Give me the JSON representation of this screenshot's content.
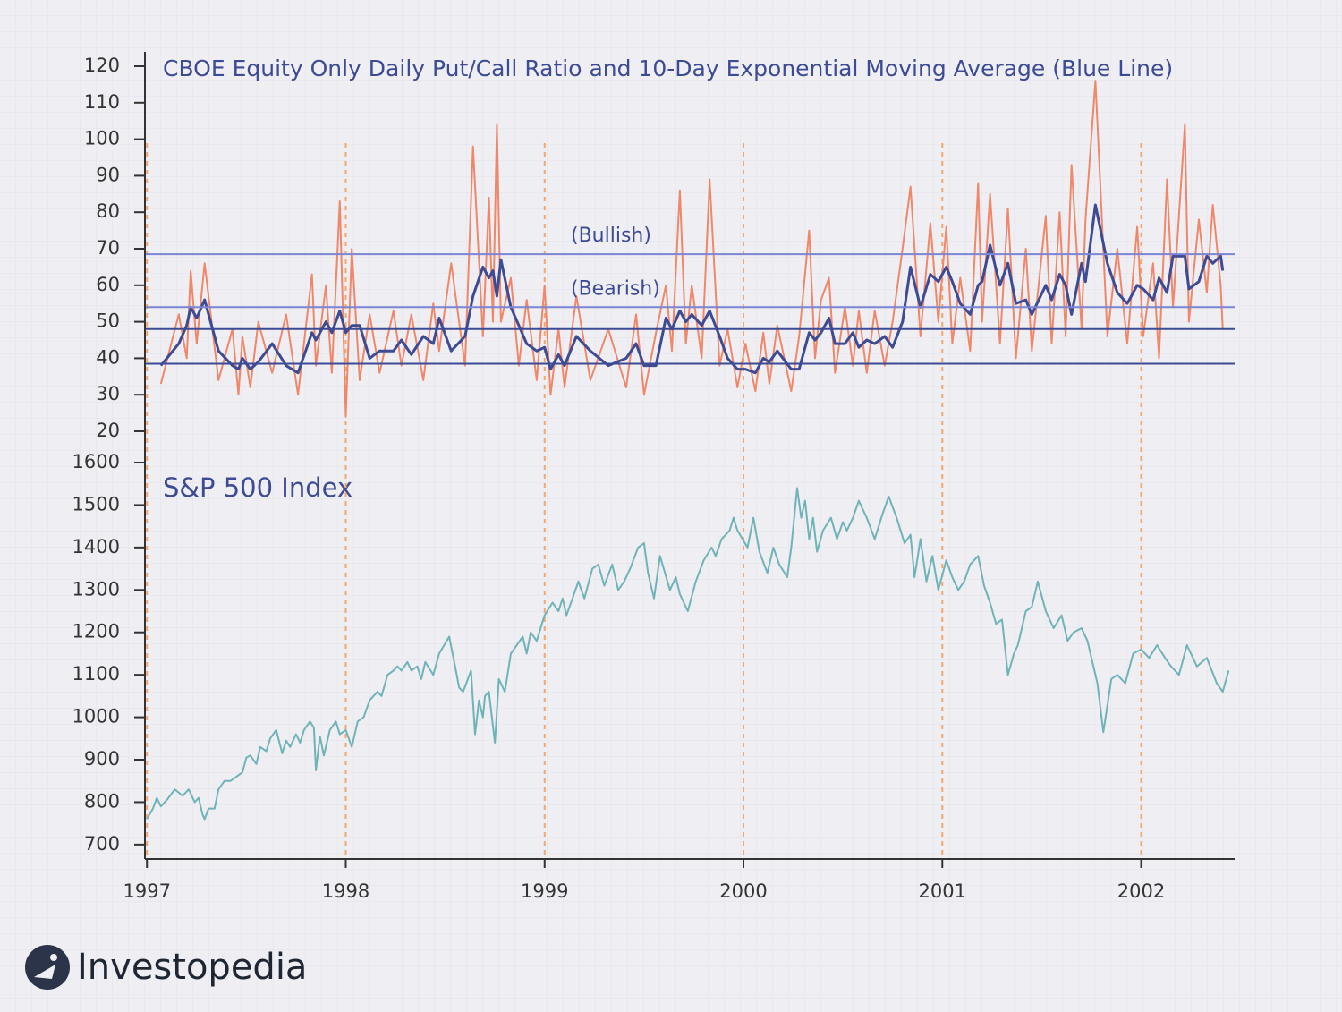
{
  "chart_data": [
    {
      "type": "line",
      "title": "CBOE Equity Only Daily Put/Call Ratio and 10-Day Exponential Moving Average (Blue Line)",
      "xlim": [
        1996.99,
        2002.47
      ],
      "ylim": [
        20,
        120
      ],
      "yticks": [
        20,
        30,
        40,
        50,
        60,
        70,
        80,
        90,
        100,
        110,
        120
      ],
      "x": [
        1997.07,
        1997.16,
        1997.2,
        1997.22,
        1997.25,
        1997.29,
        1997.36,
        1997.43,
        1997.46,
        1997.48,
        1997.52,
        1997.56,
        1997.63,
        1997.7,
        1997.76,
        1997.83,
        1997.85,
        1997.9,
        1997.93,
        1997.97,
        1998.0,
        1998.03,
        1998.07,
        1998.12,
        1998.17,
        1998.24,
        1998.28,
        1998.33,
        1998.39,
        1998.44,
        1998.47,
        1998.53,
        1998.6,
        1998.64,
        1998.69,
        1998.72,
        1998.74,
        1998.76,
        1998.78,
        1998.83,
        1998.87,
        1998.91,
        1998.96,
        1999.0,
        1999.03,
        1999.07,
        1999.1,
        1999.16,
        1999.23,
        1999.32,
        1999.41,
        1999.46,
        1999.5,
        1999.56,
        1999.61,
        1999.64,
        1999.68,
        1999.71,
        1999.74,
        1999.79,
        1999.83,
        1999.88,
        1999.92,
        1999.97,
        2000.01,
        2000.06,
        2000.1,
        2000.13,
        2000.17,
        2000.24,
        2000.28,
        2000.33,
        2000.36,
        2000.39,
        2000.43,
        2000.46,
        2000.51,
        2000.55,
        2000.58,
        2000.62,
        2000.66,
        2000.71,
        2000.75,
        2000.8,
        2000.84,
        2000.89,
        2000.94,
        2000.98,
        2001.02,
        2001.05,
        2001.09,
        2001.14,
        2001.18,
        2001.2,
        2001.24,
        2001.29,
        2001.33,
        2001.37,
        2001.42,
        2001.45,
        2001.52,
        2001.55,
        2001.59,
        2001.62,
        2001.65,
        2001.7,
        2001.72,
        2001.77,
        2001.83,
        2001.88,
        2001.93,
        2001.98,
        2002.01,
        2002.06,
        2002.09,
        2002.13,
        2002.16,
        2002.22,
        2002.24,
        2002.29,
        2002.33,
        2002.36,
        2002.4,
        2002.41
      ],
      "series": [
        {
          "color": "#f0876a",
          "values": [
            33,
            52,
            40,
            64,
            44,
            66,
            34,
            48,
            30,
            46,
            32,
            50,
            36,
            52,
            30,
            63,
            38,
            60,
            36,
            83,
            24,
            70,
            34,
            52,
            36,
            53,
            38,
            52,
            34,
            55,
            42,
            66,
            38,
            98,
            46,
            84,
            50,
            104,
            50,
            62,
            38,
            56,
            34,
            60,
            30,
            48,
            32,
            57,
            34,
            48,
            32,
            52,
            30,
            47,
            60,
            42,
            86,
            44,
            60,
            40,
            89,
            38,
            48,
            32,
            44,
            31,
            47,
            33,
            49,
            31,
            46,
            75,
            40,
            56,
            62,
            36,
            54,
            38,
            53,
            36,
            53,
            38,
            50,
            70,
            87,
            46,
            77,
            50,
            76,
            44,
            62,
            42,
            88,
            50,
            85,
            44,
            81,
            40,
            70,
            42,
            79,
            44,
            80,
            46,
            93,
            48,
            78,
            116,
            46,
            70,
            44,
            76,
            46,
            66,
            40,
            89,
            54,
            104,
            50,
            78,
            58,
            82,
            60,
            48
          ]
        },
        {
          "color": "#3d4a94",
          "values": [
            38,
            44,
            49,
            54,
            51,
            56,
            42,
            38,
            37,
            40,
            37,
            39,
            44,
            38,
            36,
            47,
            45,
            50,
            47,
            53,
            47,
            49,
            49,
            40,
            42,
            42,
            45,
            41,
            46,
            44,
            51,
            42,
            46,
            57,
            65,
            62,
            64,
            57,
            67,
            54,
            49,
            44,
            42,
            43,
            37,
            41,
            38,
            46,
            42,
            38,
            40,
            44,
            38,
            38,
            51,
            48,
            53,
            50,
            52,
            49,
            53,
            46,
            40,
            37,
            37,
            36,
            40,
            39,
            42,
            37,
            37,
            47,
            45,
            47,
            51,
            44,
            44,
            47,
            43,
            45,
            44,
            46,
            43,
            50,
            65,
            54,
            63,
            61,
            65,
            61,
            55,
            52,
            60,
            61,
            71,
            60,
            66,
            55,
            56,
            52,
            60,
            56,
            63,
            60,
            52,
            66,
            61,
            82,
            66,
            58,
            55,
            60,
            59,
            56,
            62,
            58,
            68,
            68,
            59,
            61,
            68,
            66,
            68,
            64
          ]
        }
      ],
      "reference_lines": [
        {
          "value": 68.5,
          "color": "#7c85d4"
        },
        {
          "value": 54,
          "color": "#7c85d4"
        },
        {
          "value": 48,
          "color": "#3d4a94"
        },
        {
          "value": 38.5,
          "color": "#3d4a94"
        }
      ],
      "annotations": [
        "(Bullish)",
        "(Bearish)"
      ]
    },
    {
      "type": "line",
      "title": "S&P 500 Index",
      "xlim": [
        1996.99,
        2002.47
      ],
      "xticks": [
        1997,
        1998,
        1999,
        2000,
        2001,
        2002
      ],
      "ylim": [
        666,
        1600
      ],
      "yticks": [
        700,
        800,
        900,
        1000,
        1100,
        1200,
        1300,
        1400,
        1500,
        1600
      ],
      "x": [
        1997.0,
        1997.03,
        1997.05,
        1997.07,
        1997.1,
        1997.14,
        1997.18,
        1997.21,
        1997.24,
        1997.26,
        1997.28,
        1997.29,
        1997.31,
        1997.34,
        1997.36,
        1997.39,
        1997.42,
        1997.45,
        1997.48,
        1997.5,
        1997.52,
        1997.55,
        1997.57,
        1997.6,
        1997.62,
        1997.65,
        1997.68,
        1997.7,
        1997.72,
        1997.75,
        1997.77,
        1997.79,
        1997.82,
        1997.84,
        1997.85,
        1997.87,
        1997.89,
        1997.92,
        1997.95,
        1997.97,
        1998.0,
        1998.03,
        1998.06,
        1998.09,
        1998.12,
        1998.16,
        1998.18,
        1998.21,
        1998.24,
        1998.26,
        1998.28,
        1998.31,
        1998.33,
        1998.36,
        1998.38,
        1998.4,
        1998.44,
        1998.47,
        1998.52,
        1998.55,
        1998.57,
        1998.59,
        1998.63,
        1998.65,
        1998.67,
        1998.69,
        1998.7,
        1998.72,
        1998.75,
        1998.77,
        1998.8,
        1998.83,
        1998.86,
        1998.89,
        1998.91,
        1998.93,
        1998.96,
        1999.0,
        1999.04,
        1999.07,
        1999.09,
        1999.11,
        1999.14,
        1999.17,
        1999.2,
        1999.24,
        1999.27,
        1999.3,
        1999.34,
        1999.37,
        1999.4,
        1999.43,
        1999.47,
        1999.5,
        1999.52,
        1999.55,
        1999.58,
        1999.63,
        1999.66,
        1999.68,
        1999.72,
        1999.76,
        1999.8,
        1999.84,
        1999.86,
        1999.89,
        1999.93,
        1999.95,
        1999.97,
        2000.02,
        2000.05,
        2000.08,
        2000.12,
        2000.15,
        2000.18,
        2000.22,
        2000.24,
        2000.27,
        2000.29,
        2000.31,
        2000.33,
        2000.35,
        2000.37,
        2000.4,
        2000.44,
        2000.47,
        2000.5,
        2000.52,
        2000.55,
        2000.58,
        2000.62,
        2000.66,
        2000.7,
        2000.73,
        2000.77,
        2000.81,
        2000.84,
        2000.86,
        2000.89,
        2000.92,
        2000.95,
        2000.98,
        2001.02,
        2001.05,
        2001.08,
        2001.11,
        2001.14,
        2001.18,
        2001.21,
        2001.24,
        2001.27,
        2001.3,
        2001.33,
        2001.36,
        2001.38,
        2001.42,
        2001.45,
        2001.48,
        2001.52,
        2001.56,
        2001.6,
        2001.63,
        2001.66,
        2001.7,
        2001.73,
        2001.78,
        2001.81,
        2001.85,
        2001.88,
        2001.92,
        2001.96,
        2002.0,
        2002.04,
        2002.08,
        2002.12,
        2002.15,
        2002.19,
        2002.23,
        2002.28,
        2002.33,
        2002.38,
        2002.41,
        2002.44
      ],
      "series": [
        {
          "name": "S&P 500 Index",
          "color": "#6fb3b8",
          "values": [
            760,
            785,
            810,
            790,
            805,
            830,
            815,
            830,
            800,
            810,
            770,
            760,
            785,
            785,
            830,
            850,
            850,
            860,
            870,
            905,
            910,
            890,
            930,
            920,
            950,
            970,
            915,
            945,
            930,
            960,
            940,
            970,
            990,
            975,
            875,
            955,
            910,
            970,
            990,
            960,
            970,
            930,
            990,
            1000,
            1040,
            1060,
            1050,
            1100,
            1110,
            1120,
            1110,
            1130,
            1110,
            1120,
            1090,
            1130,
            1100,
            1150,
            1190,
            1120,
            1070,
            1060,
            1110,
            960,
            1040,
            1000,
            1050,
            1060,
            940,
            1090,
            1060,
            1150,
            1170,
            1190,
            1150,
            1200,
            1180,
            1240,
            1270,
            1250,
            1280,
            1240,
            1280,
            1320,
            1280,
            1350,
            1360,
            1310,
            1360,
            1300,
            1320,
            1350,
            1400,
            1410,
            1340,
            1280,
            1380,
            1300,
            1330,
            1290,
            1250,
            1320,
            1370,
            1400,
            1380,
            1420,
            1440,
            1470,
            1440,
            1400,
            1470,
            1390,
            1340,
            1400,
            1360,
            1330,
            1400,
            1540,
            1470,
            1510,
            1420,
            1470,
            1390,
            1440,
            1470,
            1420,
            1460,
            1440,
            1470,
            1510,
            1470,
            1420,
            1480,
            1520,
            1470,
            1410,
            1430,
            1330,
            1420,
            1320,
            1380,
            1300,
            1370,
            1330,
            1300,
            1320,
            1360,
            1380,
            1310,
            1270,
            1220,
            1230,
            1100,
            1150,
            1170,
            1250,
            1260,
            1320,
            1250,
            1210,
            1240,
            1180,
            1200,
            1210,
            1180,
            1080,
            965,
            1090,
            1100,
            1080,
            1150,
            1160,
            1140,
            1170,
            1140,
            1120,
            1100,
            1170,
            1120,
            1140,
            1080,
            1060,
            1110
          ]
        }
      ]
    }
  ],
  "logo": "Investopedia"
}
